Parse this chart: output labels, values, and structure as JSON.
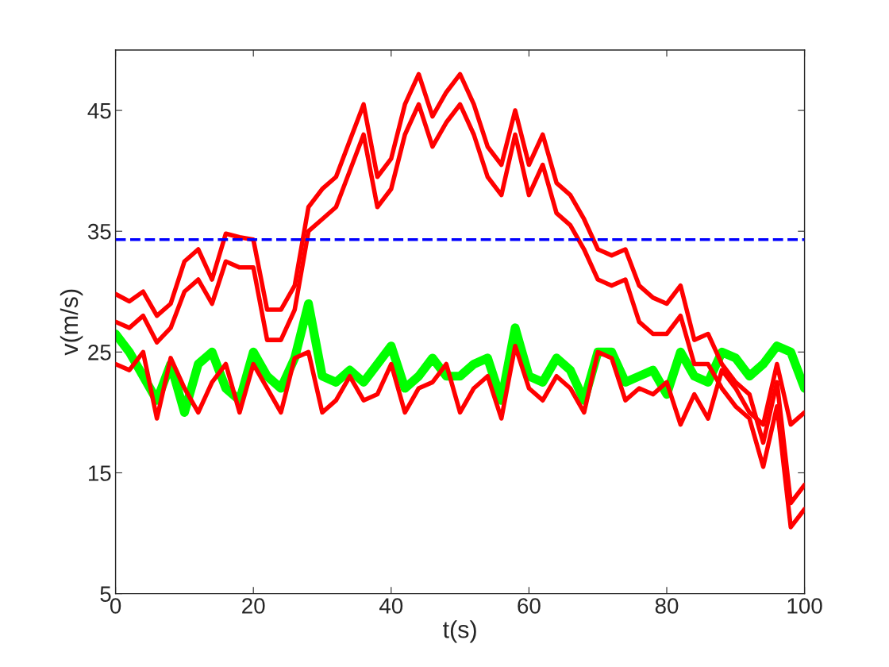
{
  "chart_data": {
    "type": "line",
    "xlabel": "t(s)",
    "ylabel": "v(m/s)",
    "x": [
      0,
      2,
      4,
      6,
      8,
      10,
      12,
      14,
      16,
      18,
      20,
      22,
      24,
      26,
      28,
      30,
      32,
      34,
      36,
      38,
      40,
      42,
      44,
      46,
      48,
      50,
      52,
      54,
      56,
      58,
      60,
      62,
      64,
      66,
      68,
      70,
      72,
      74,
      76,
      78,
      80,
      82,
      84,
      86,
      88,
      90,
      92,
      94,
      96,
      98,
      100
    ],
    "series": [
      {
        "color": "#00ff00",
        "values": [
          26.5,
          25,
          23,
          21,
          24,
          20,
          24,
          25,
          22,
          21,
          25,
          23,
          22,
          24.5,
          29,
          23,
          22.5,
          23.5,
          22.5,
          24,
          25.5,
          22,
          23,
          24.5,
          23,
          23,
          24,
          24.5,
          21,
          27,
          23,
          22.5,
          24.5,
          23.5,
          21,
          25,
          25,
          22.5,
          23,
          23.5,
          21.5,
          25,
          23,
          22.5,
          25,
          24.5,
          23,
          24,
          25.5,
          25,
          22
        ]
      },
      {
        "color": "#ff0000",
        "values": [
          24,
          23.5,
          25,
          19.5,
          24.5,
          22,
          20,
          22.5,
          24,
          20,
          24,
          22,
          20,
          24.5,
          25,
          20,
          21,
          23,
          21,
          21.5,
          24,
          20,
          22,
          22.5,
          24,
          20,
          22,
          23,
          19.5,
          25.5,
          22,
          21,
          23,
          22,
          20,
          25,
          24.5,
          21,
          22,
          21.5,
          22.5,
          19,
          21.5,
          19.5,
          23.5,
          22,
          20,
          19,
          24,
          19,
          20
        ]
      },
      {
        "color": "#ff0000",
        "values": [
          27.5,
          27,
          28,
          25.8,
          27,
          30,
          31,
          29,
          32.5,
          32,
          32,
          26,
          26,
          28.5,
          35,
          36,
          37,
          40,
          43,
          37,
          38.5,
          43,
          45.5,
          42,
          44,
          45.5,
          43,
          39.5,
          38,
          43,
          38,
          40.5,
          36.5,
          35.5,
          33.5,
          31,
          30.5,
          31,
          27.5,
          26.5,
          26.5,
          28,
          24,
          24,
          22,
          20.5,
          19.5,
          15.5,
          20.5,
          10.5,
          12
        ]
      },
      {
        "color": "#ff0000",
        "values": [
          29.8,
          29.2,
          30.0,
          28.0,
          29.0,
          32.5,
          33.5,
          31.0,
          34.8,
          34.5,
          34.3,
          28.5,
          28.5,
          30.5,
          37.0,
          38.5,
          39.5,
          42.5,
          45.5,
          39.5,
          41.0,
          45.5,
          48.0,
          44.5,
          46.5,
          48.0,
          45.5,
          42.0,
          40.5,
          45.0,
          40.5,
          43.0,
          39.0,
          38.0,
          36.0,
          33.5,
          33.0,
          33.5,
          30.5,
          29.5,
          29.0,
          30.5,
          26.0,
          26.5,
          24.0,
          22.5,
          21.5,
          17.5,
          22.5,
          12.5,
          14.0
        ]
      }
    ],
    "ref_lines": [
      {
        "axis": "y",
        "value": 34.3,
        "color": "#0000ff",
        "line_style": "dashed"
      }
    ],
    "xlim": [
      0,
      100
    ],
    "xticks": [
      0,
      20,
      40,
      60,
      80,
      100
    ],
    "ylim": [
      5,
      50
    ],
    "yticks": [
      5,
      15,
      25,
      35,
      45
    ],
    "grid": false,
    "line_style": "solid"
  }
}
